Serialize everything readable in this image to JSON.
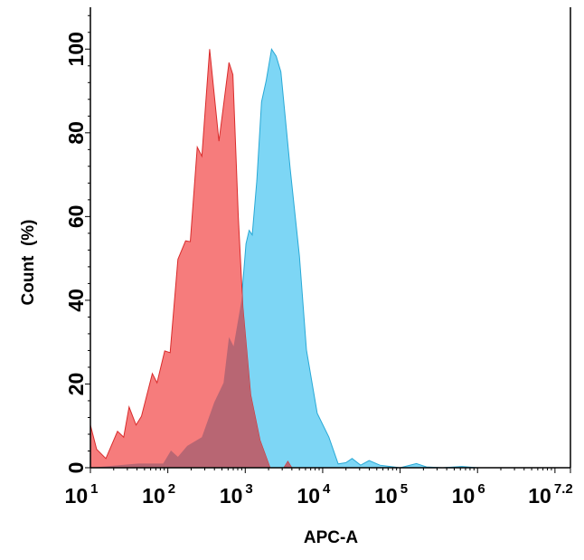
{
  "chart_data": {
    "type": "area",
    "title": "",
    "xlabel": "APC-A",
    "ylabel": "Count  (%)",
    "xscale": "log",
    "xlim_log10": [
      1,
      7.2
    ],
    "ylim": [
      0,
      110
    ],
    "x_ticks": [
      {
        "base": "10",
        "exp": "1",
        "log": 1
      },
      {
        "base": "10",
        "exp": "2",
        "log": 2
      },
      {
        "base": "10",
        "exp": "3",
        "log": 3
      },
      {
        "base": "10",
        "exp": "4",
        "log": 4
      },
      {
        "base": "10",
        "exp": "5",
        "log": 5
      },
      {
        "base": "10",
        "exp": "6",
        "log": 6
      },
      {
        "base": "10",
        "exp": "7.2",
        "log": 7.2
      }
    ],
    "y_ticks": [
      "0",
      "20",
      "40",
      "60",
      "80",
      "100"
    ],
    "grid": false,
    "legend": "none",
    "series": [
      {
        "color": "#7dd6f5",
        "stroke": "#29a9d6",
        "points_log10x_count": [
          [
            1.0,
            0
          ],
          [
            1.3,
            0.5
          ],
          [
            1.62,
            1
          ],
          [
            1.94,
            1
          ],
          [
            2.04,
            4.1
          ],
          [
            2.13,
            2.6
          ],
          [
            2.25,
            5.2
          ],
          [
            2.44,
            7.3
          ],
          [
            2.6,
            15.6
          ],
          [
            2.72,
            20.3
          ],
          [
            2.79,
            31.2
          ],
          [
            2.85,
            29
          ],
          [
            2.95,
            39.8
          ],
          [
            3.01,
            53.5
          ],
          [
            3.05,
            56.7
          ],
          [
            3.09,
            55.6
          ],
          [
            3.15,
            68.6
          ],
          [
            3.21,
            87.4
          ],
          [
            3.27,
            92.4
          ],
          [
            3.34,
            100
          ],
          [
            3.4,
            98.3
          ],
          [
            3.46,
            94.6
          ],
          [
            3.58,
            71.4
          ],
          [
            3.7,
            50.6
          ],
          [
            3.79,
            28.1
          ],
          [
            3.93,
            13
          ],
          [
            4.08,
            7.3
          ],
          [
            4.2,
            0.9
          ],
          [
            4.3,
            1.2
          ],
          [
            4.38,
            2.2
          ],
          [
            4.49,
            0.6
          ],
          [
            4.6,
            1.7
          ],
          [
            4.74,
            0.6
          ],
          [
            5.0,
            0
          ],
          [
            5.21,
            1
          ],
          [
            5.34,
            0.2
          ],
          [
            5.55,
            0
          ],
          [
            5.8,
            0.3
          ],
          [
            6.0,
            0
          ],
          [
            7.2,
            0
          ]
        ]
      },
      {
        "color": "#f67c7c",
        "stroke": "#d92b2b",
        "overlap_color": "#b86673",
        "points_log10x_count": [
          [
            1.0,
            10.2
          ],
          [
            1.08,
            4.4
          ],
          [
            1.2,
            2.2
          ],
          [
            1.35,
            8.7
          ],
          [
            1.43,
            7.3
          ],
          [
            1.5,
            14.5
          ],
          [
            1.59,
            10.2
          ],
          [
            1.66,
            12.3
          ],
          [
            1.8,
            22.5
          ],
          [
            1.86,
            20.3
          ],
          [
            1.96,
            27.9
          ],
          [
            2.03,
            27.5
          ],
          [
            2.13,
            49.8
          ],
          [
            2.23,
            54.2
          ],
          [
            2.29,
            54
          ],
          [
            2.38,
            76.6
          ],
          [
            2.44,
            74.4
          ],
          [
            2.54,
            100
          ],
          [
            2.66,
            78
          ],
          [
            2.79,
            96.8
          ],
          [
            2.84,
            93.9
          ],
          [
            2.91,
            60
          ],
          [
            2.97,
            38.3
          ],
          [
            3.07,
            17.4
          ],
          [
            3.19,
            6.6
          ],
          [
            3.32,
            0
          ],
          [
            3.5,
            0
          ],
          [
            3.55,
            1.5
          ],
          [
            3.6,
            0
          ]
        ]
      }
    ]
  }
}
